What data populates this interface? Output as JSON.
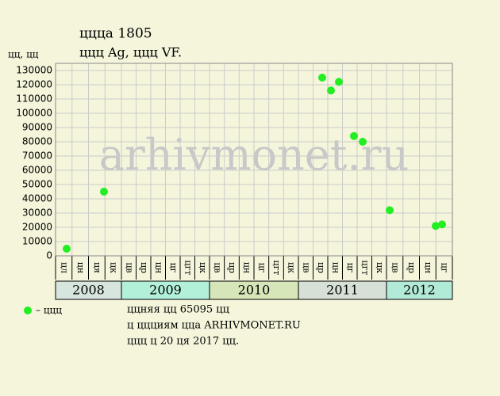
{
  "chart_data": {
    "type": "scatter",
    "title": "ццца 1805",
    "subtitle": "ццц Ag, ццц VF.",
    "y_label": "цц, цц",
    "watermark": "arhivmonet.ru",
    "ylim": [
      0,
      135000
    ],
    "yticks": [
      0,
      10000,
      20000,
      30000,
      40000,
      50000,
      60000,
      70000,
      80000,
      90000,
      100000,
      110000,
      120000,
      130000
    ],
    "grid": true,
    "years": [
      {
        "name": "2008",
        "color": "#d6e6de",
        "periods": [
          "цл",
          "цн",
          "ця",
          "цк"
        ]
      },
      {
        "name": "2009",
        "color": "#b2f0da",
        "periods": [
          "цв",
          "цр",
          "цн",
          "цг",
          "цгт",
          "цк"
        ]
      },
      {
        "name": "2010",
        "color": "#d6e6b8",
        "periods": [
          "цв",
          "цр",
          "цн",
          "цг",
          "цгт",
          "цк"
        ]
      },
      {
        "name": "2011",
        "color": "#d6e0d6",
        "periods": [
          "цв",
          "цр",
          "цн",
          "цг",
          "цгт",
          "цк"
        ]
      },
      {
        "name": "2012",
        "color": "#b2ead8",
        "periods": [
          "цв",
          "цр",
          "цн",
          "цг"
        ]
      }
    ],
    "series": [
      {
        "name": "– ццц",
        "color": "#22ee22",
        "values": [
          5000,
          45000,
          125000,
          116000,
          122000,
          84000,
          80000,
          32000,
          21000,
          22000
        ]
      }
    ],
    "notes": [
      "ццняя цц 65095 цц",
      "ц ццциям цца ARHIVMONET.RU",
      "ццц ц 20 ця 2017 цц."
    ]
  }
}
